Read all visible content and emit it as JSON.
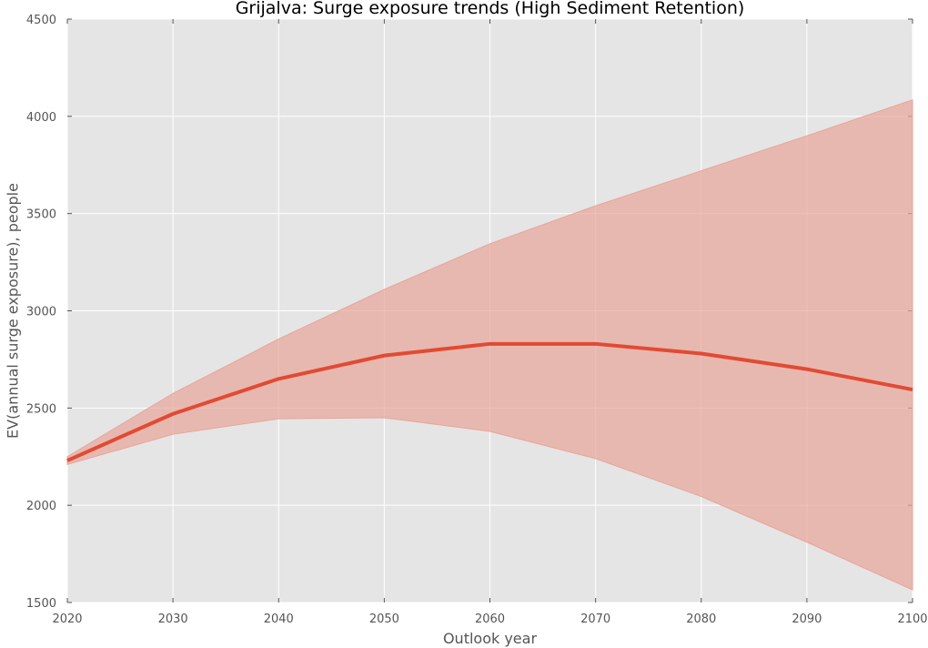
{
  "chart_data": {
    "type": "line",
    "title": "Grijalva: Surge exposure trends (High Sediment Retention)",
    "xlabel": "Outlook year",
    "ylabel": "EV(annual surge exposure), people",
    "xlim": [
      2020,
      2100
    ],
    "ylim": [
      1500,
      4500
    ],
    "x_ticks": [
      2020,
      2030,
      2040,
      2050,
      2060,
      2070,
      2080,
      2090,
      2100
    ],
    "y_ticks": [
      1500,
      2000,
      2500,
      3000,
      3500,
      4000,
      4500
    ],
    "grid": true,
    "x": [
      2020,
      2030,
      2040,
      2050,
      2060,
      2070,
      2080,
      2090,
      2100
    ],
    "series": [
      {
        "values": [
          2230,
          2470,
          2650,
          2770,
          2830,
          2830,
          2780,
          2700,
          2595
        ],
        "lower": [
          2210,
          2365,
          2445,
          2450,
          2380,
          2240,
          2045,
          1810,
          1565
        ],
        "upper": [
          2250,
          2575,
          2855,
          3110,
          3345,
          3540,
          3720,
          3900,
          4085
        ]
      }
    ],
    "colors": {
      "line": "#e24a33",
      "band": "#e8a59a",
      "background": "#e5e5e5",
      "grid": "#ffffff"
    }
  }
}
